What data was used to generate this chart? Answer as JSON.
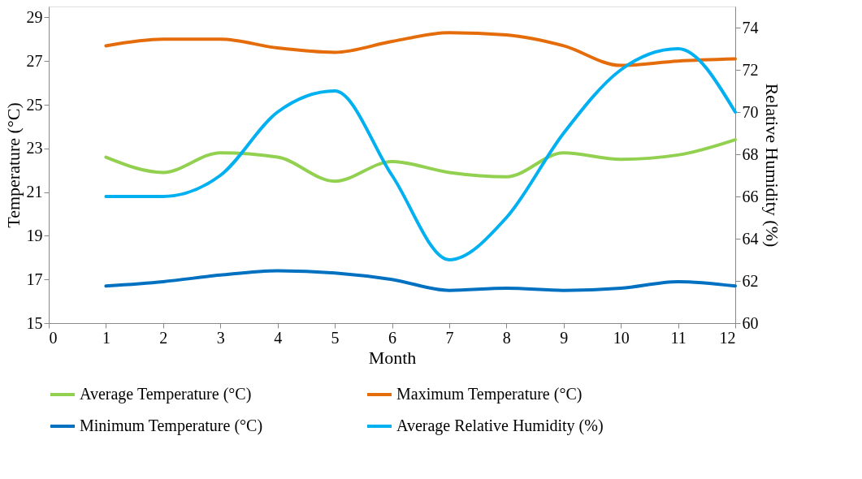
{
  "chart_data": {
    "type": "line",
    "xlabel": "Month",
    "ylabel": "Temperature (°C)",
    "y2label": "Relative Humidity (%)",
    "x": [
      1,
      2,
      3,
      4,
      5,
      6,
      7,
      8,
      9,
      10,
      11,
      12
    ],
    "series": [
      {
        "name": "Average Temperature  (°C)",
        "color": "#92d050",
        "values": [
          22.6,
          21.9,
          22.8,
          22.6,
          21.5,
          22.4,
          21.9,
          21.7,
          22.8,
          22.5,
          22.7,
          23.4
        ]
      },
      {
        "name": "Maximum Temperature (°C)",
        "color": "#e46c0a",
        "values": [
          27.7,
          28.0,
          28.0,
          27.6,
          27.4,
          27.9,
          28.3,
          28.2,
          27.7,
          26.8,
          27.0,
          27.1
        ]
      },
      {
        "name": "Minimum Temperature (°C)",
        "color": "#0070c0",
        "values": [
          16.7,
          16.9,
          17.2,
          17.4,
          17.3,
          17.0,
          16.5,
          16.6,
          16.5,
          16.6,
          16.9,
          16.7
        ]
      },
      {
        "name": "Average Relative Humidity (%)",
        "color": "#00b0f0",
        "axis": "y2",
        "values": [
          66,
          66,
          67,
          70,
          71,
          67,
          63,
          65,
          69,
          72,
          73,
          70
        ]
      }
    ],
    "xlim": [
      0,
      12
    ],
    "xticks": [
      0,
      1,
      2,
      3,
      4,
      5,
      6,
      7,
      8,
      9,
      10,
      11,
      12
    ],
    "ylim": [
      15,
      29.5
    ],
    "yticks": [
      15,
      17,
      19,
      21,
      23,
      25,
      27,
      29
    ],
    "y2lim": [
      60,
      75
    ],
    "y2ticks": [
      60,
      62,
      64,
      66,
      68,
      70,
      72,
      74
    ],
    "grid": false,
    "legend": "bottom",
    "marker": "none",
    "line_style": "solid"
  }
}
